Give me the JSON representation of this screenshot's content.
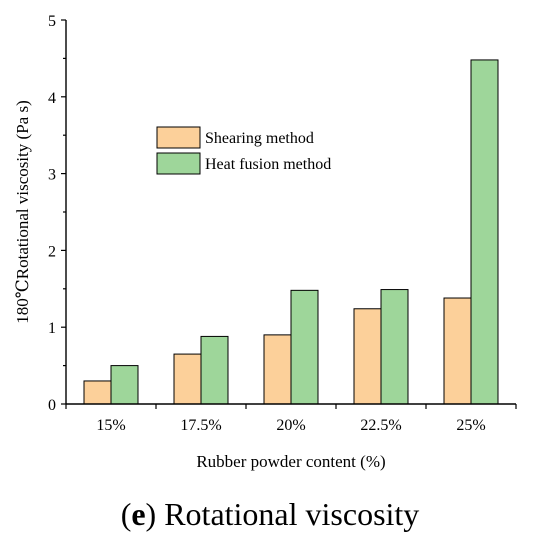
{
  "chart_data": {
    "type": "bar",
    "categories": [
      "15%",
      "17.5%",
      "20%",
      "22.5%",
      "25%"
    ],
    "series": [
      {
        "name": "Shearing method",
        "values": [
          0.3,
          0.65,
          0.9,
          1.24,
          1.38
        ],
        "color": "#fcd09a"
      },
      {
        "name": "Heat fusion method",
        "values": [
          0.5,
          0.88,
          1.48,
          1.49,
          4.48
        ],
        "color": "#9ed69a"
      }
    ],
    "xlabel": "Rubber powder content (%)",
    "ylabel": "180℃Rotational viscosity (Pa s)",
    "ylim": [
      0,
      5
    ],
    "yticks": [
      "0",
      "1",
      "2",
      "3",
      "4",
      "5"
    ],
    "legend_position": "upper-left",
    "grid": false
  },
  "caption": {
    "letter": "e",
    "text": " Rotational viscosity"
  }
}
